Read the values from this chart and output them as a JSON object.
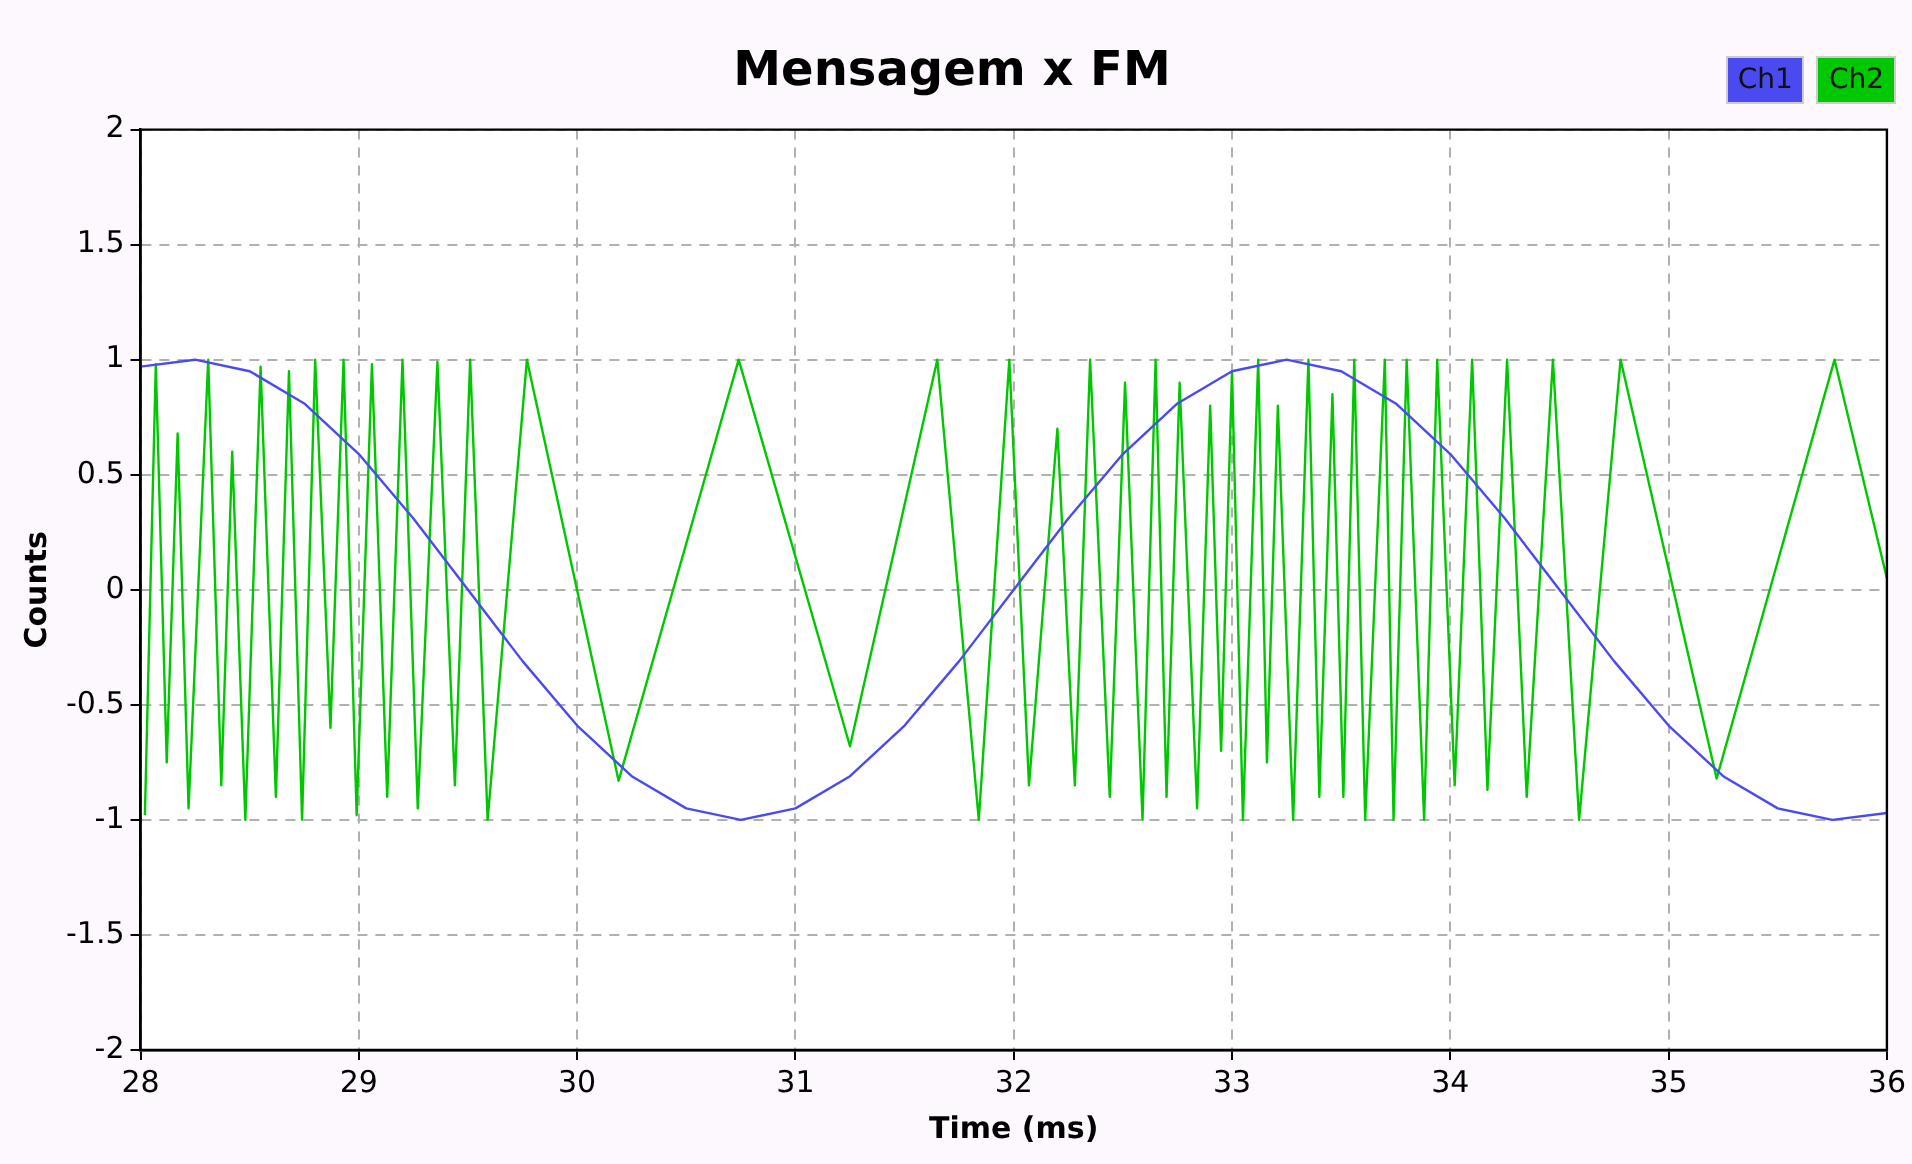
{
  "chart_data": {
    "type": "line",
    "title": "Mensagem x FM",
    "xlabel": "Time (ms)",
    "ylabel": "Counts",
    "xlim": [
      28,
      36
    ],
    "xticks": [
      28,
      29,
      30,
      31,
      32,
      33,
      34,
      35,
      36
    ],
    "ylim": [
      -2,
      2
    ],
    "yticks": [
      -2,
      -1.5,
      -1,
      -0.5,
      0,
      0.5,
      1,
      1.5,
      2
    ],
    "grid": true,
    "legend": "top right",
    "marker": "none",
    "line_style": "solid",
    "series": [
      {
        "name": "Ch1",
        "color": "#4a4af0",
        "x": [
          28,
          28.25,
          28.5,
          28.75,
          29,
          29.25,
          29.5,
          29.75,
          30,
          30.25,
          30.5,
          30.75,
          31,
          31.25,
          31.5,
          31.75,
          32,
          32.25,
          32.5,
          32.75,
          33,
          33.25,
          33.5,
          33.75,
          34,
          34.25,
          34.5,
          34.75,
          35,
          35.25,
          35.5,
          35.75,
          36
        ],
        "values": [
          0.97,
          1,
          0.95,
          0.81,
          0.59,
          0.31,
          0,
          -0.31,
          -0.59,
          -0.81,
          -0.95,
          -1,
          -0.95,
          -0.81,
          -0.59,
          -0.31,
          0,
          0.31,
          0.59,
          0.81,
          0.95,
          1,
          0.95,
          0.81,
          0.59,
          0.31,
          0,
          -0.31,
          -0.59,
          -0.81,
          -0.95,
          -1,
          -0.97
        ]
      },
      {
        "name": "Ch2",
        "color": "#00c800",
        "x": [
          28.02,
          28.07,
          28.12,
          28.17,
          28.22,
          28.31,
          28.37,
          28.42,
          28.48,
          28.55,
          28.62,
          28.68,
          28.74,
          28.8,
          28.87,
          28.93,
          28.99,
          29.06,
          29.13,
          29.2,
          29.27,
          29.36,
          29.44,
          29.51,
          29.59,
          29.77,
          30.19,
          30.74,
          31.25,
          31.65,
          31.84,
          31.98,
          32.07,
          32.2,
          32.28,
          32.35,
          32.44,
          32.51,
          32.59,
          32.65,
          32.7,
          32.76,
          32.84,
          32.9,
          32.95,
          33,
          33.05,
          33.12,
          33.16,
          33.21,
          33.28,
          33.35,
          33.4,
          33.46,
          33.51,
          33.56,
          33.61,
          33.7,
          33.74,
          33.8,
          33.88,
          33.94,
          34.02,
          34.1,
          34.17,
          34.26,
          34.35,
          34.47,
          34.59,
          34.78,
          35.22,
          35.76,
          36
        ],
        "values": [
          -0.98,
          0.98,
          -0.75,
          0.68,
          -0.95,
          1,
          -0.85,
          0.6,
          -1,
          0.97,
          -0.9,
          0.95,
          -1,
          1,
          -0.6,
          1,
          -0.98,
          0.98,
          -0.9,
          1,
          -0.95,
          0.99,
          -0.85,
          1,
          -1,
          1,
          -0.83,
          1,
          -0.68,
          1,
          -1,
          1,
          -0.85,
          0.7,
          -0.85,
          1,
          -0.9,
          0.9,
          -1,
          1,
          -0.9,
          0.9,
          -0.95,
          0.8,
          -0.7,
          0.95,
          -1,
          1,
          -0.75,
          0.8,
          -1,
          1,
          -0.9,
          0.85,
          -0.9,
          1,
          -1,
          1,
          -1,
          1,
          -1,
          1,
          -0.85,
          1,
          -0.87,
          1,
          -0.9,
          1,
          -1,
          1,
          -0.82,
          1,
          0.05
        ]
      }
    ]
  }
}
